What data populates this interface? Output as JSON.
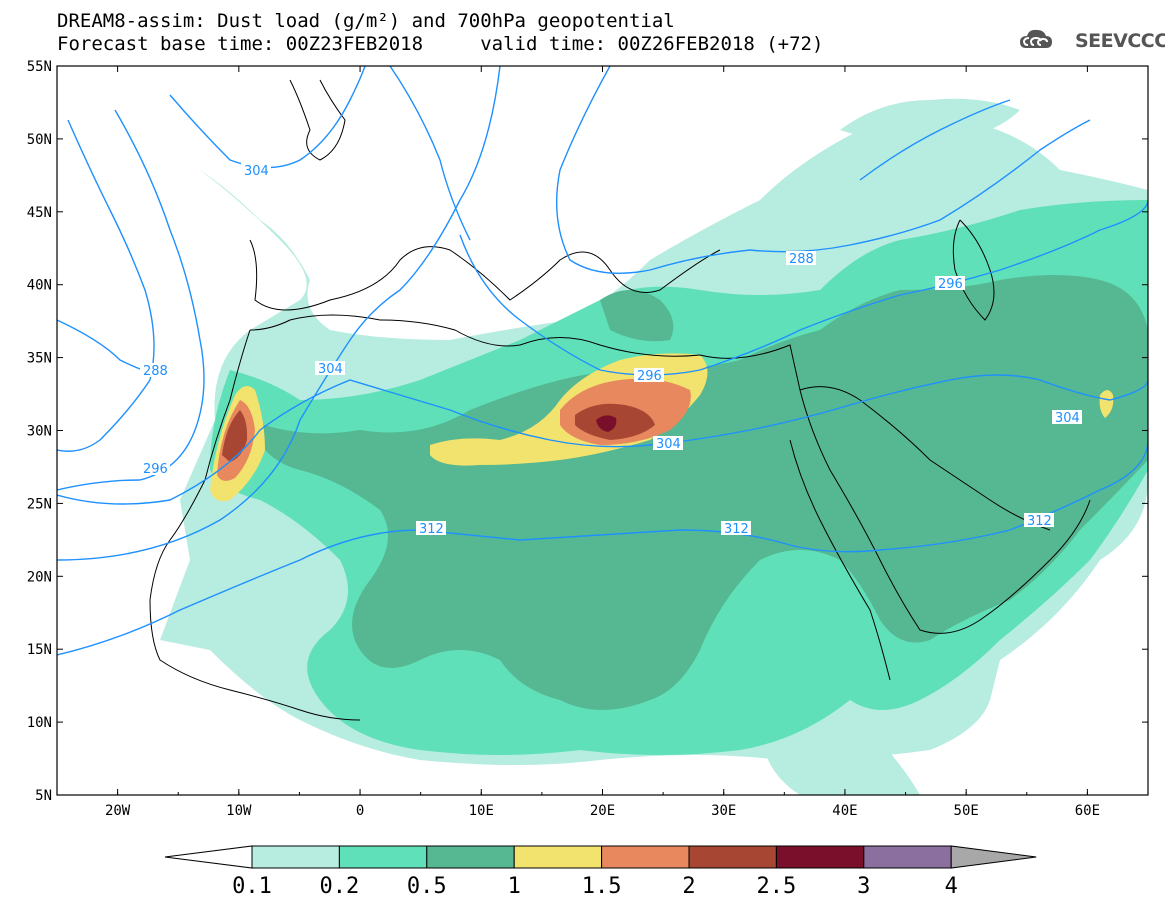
{
  "title": {
    "line1": "DREAM8-assim: Dust load (g/m²) and 700hPa geopotential",
    "line2": "Forecast base time: 00Z23FEB2018     valid time: 00Z26FEB2018 (+72)"
  },
  "logo": {
    "text": "SEEVCCC",
    "icon": "cloud-logo-icon"
  },
  "map": {
    "lon_range": [
      -25,
      65
    ],
    "lat_range": [
      5,
      55
    ],
    "lat_labels": [
      "55N",
      "50N",
      "45N",
      "40N",
      "35N",
      "30N",
      "25N",
      "20N",
      "15N",
      "10N",
      "5N"
    ],
    "lon_labels": [
      "20W",
      "10W",
      "0",
      "10E",
      "20E",
      "30E",
      "40E",
      "50E",
      "60E"
    ],
    "contour_labels": [
      "304",
      "304",
      "288",
      "296",
      "304",
      "288",
      "296",
      "304",
      "312",
      "312",
      "296",
      "304",
      "312"
    ]
  },
  "colorbar": {
    "levels": [
      "0.1",
      "0.2",
      "0.5",
      "1",
      "1.5",
      "2",
      "2.5",
      "3",
      "4"
    ],
    "colors": [
      "#ffffff",
      "#b7ece0",
      "#5fe0b8",
      "#56b892",
      "#f2e26e",
      "#e8885e",
      "#a84634",
      "#7a0f2c",
      "#8b6f9e",
      "#a8a8a8"
    ]
  },
  "dust_colors": {
    "c1": "#b7ece0",
    "c2": "#5fe0b8",
    "c3": "#56b892",
    "c4": "#f2e26e",
    "c5": "#e8885e",
    "c6": "#a84634",
    "c7": "#7a0f2c"
  },
  "contour_color": "#1e90ff"
}
